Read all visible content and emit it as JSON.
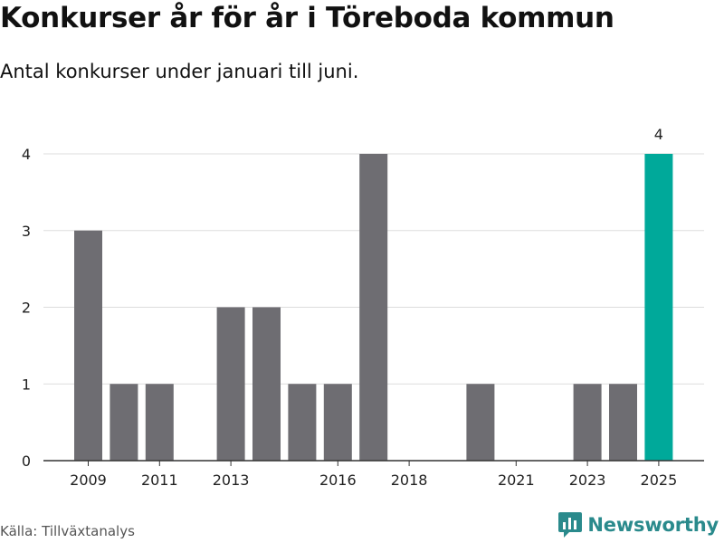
{
  "header": {
    "title": "Konkurser år för år i Töreboda kommun",
    "subtitle": "Antal konkurser under januari till juni."
  },
  "footer": {
    "source": "Källa: Tillväxtanalys",
    "brand": "Newsworthy",
    "brand_icon": "bar-chart-logo-icon"
  },
  "colors": {
    "bar": "#6e6d72",
    "highlight": "#00a99a",
    "grid": "#dddddd",
    "axis": "#333333",
    "brand": "#2a8a8c"
  },
  "chart_data": {
    "type": "bar",
    "title": "Konkurser år för år i Töreboda kommun",
    "subtitle": "Antal konkurser under januari till juni.",
    "categories": [
      "2009",
      "2010",
      "2011",
      "2012",
      "2013",
      "2014",
      "2015",
      "2016",
      "2017",
      "2018",
      "2019",
      "2020",
      "2021",
      "2022",
      "2023",
      "2024",
      "2025"
    ],
    "values": [
      3,
      1,
      1,
      0,
      2,
      2,
      1,
      1,
      4,
      0,
      0,
      1,
      0,
      0,
      1,
      1,
      4
    ],
    "x_tick_labels": [
      "2009",
      "2011",
      "2013",
      "2016",
      "2018",
      "2021",
      "2023",
      "2025"
    ],
    "y_ticks": [
      0,
      1,
      2,
      3,
      4
    ],
    "ylim": [
      0,
      4
    ],
    "grid": true,
    "highlight_category": "2025",
    "data_labels": [
      {
        "category": "2025",
        "value": 4
      }
    ],
    "source": "Källa: Tillväxtanalys"
  }
}
